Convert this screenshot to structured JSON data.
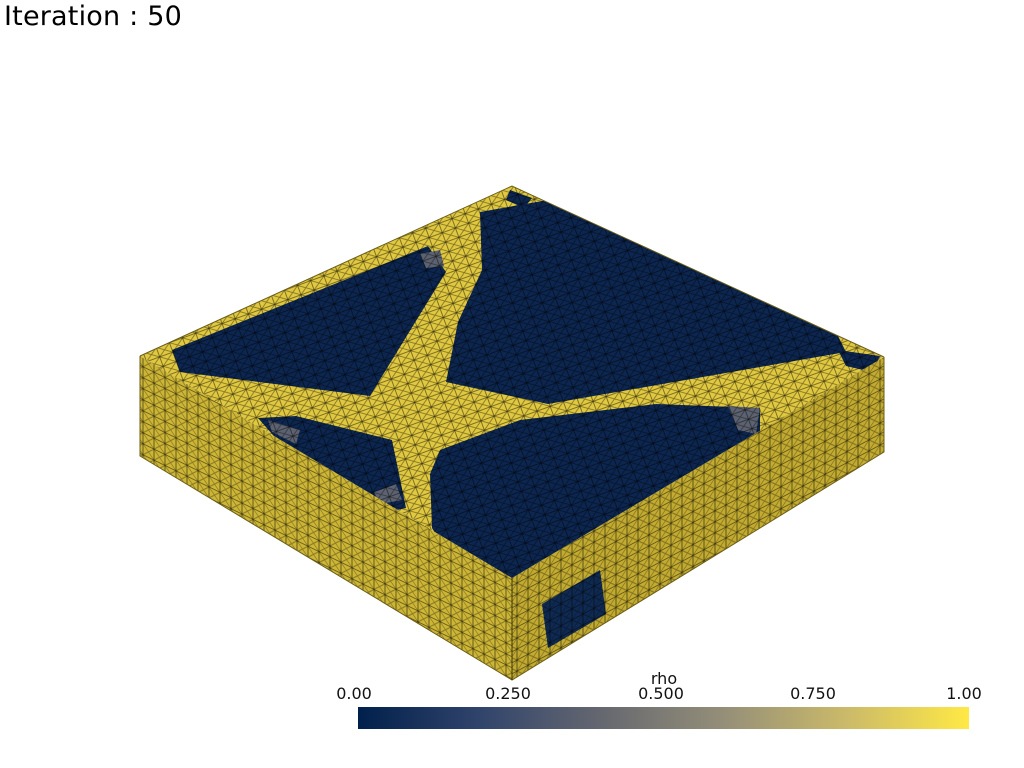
{
  "title": "Iteration : 50",
  "colorbar": {
    "label": "rho",
    "ticks": [
      "0.00",
      "0.250",
      "0.500",
      "0.750",
      "1.00"
    ],
    "colormap": [
      "#00204c",
      "#31446b",
      "#666870",
      "#958f78",
      "#cbba69",
      "#ffe945"
    ]
  },
  "colors": {
    "solid": "#e0c840",
    "void": "#0c2650",
    "intermediate": "#5c6270",
    "background": "#ffffff"
  }
}
